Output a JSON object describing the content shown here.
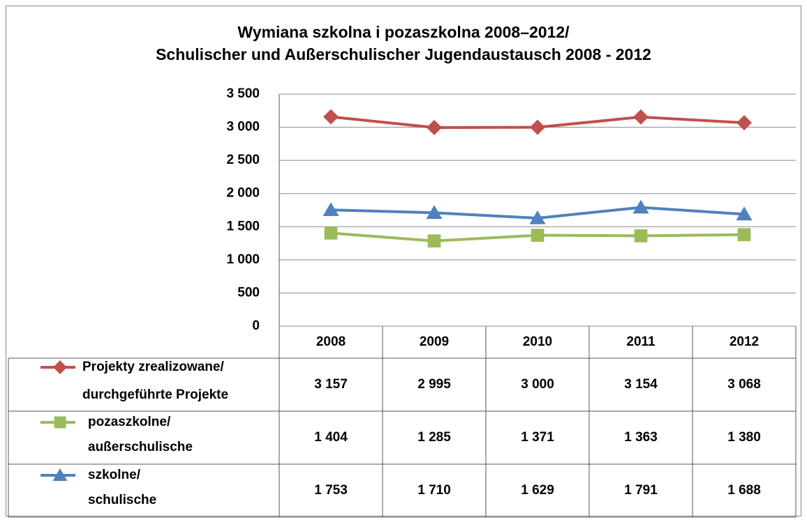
{
  "chart_data": {
    "type": "line",
    "title": "Wymiana szkolna i pozaszkolna 2008–2012/\nSchulischer und Außerschulischer Jugendaustausch 2008 - 2012",
    "categories": [
      "2008",
      "2009",
      "2010",
      "2011",
      "2012"
    ],
    "series": [
      {
        "name": "Projekty zrealizowane/\ndurchgeführte Projekte",
        "color": "#c0504d",
        "marker": "diamond",
        "values": [
          3157,
          2995,
          3000,
          3154,
          3068
        ],
        "value_labels": [
          "3 157",
          "2 995",
          "3 000",
          "3 154",
          "3 068"
        ]
      },
      {
        "name": "pozaszkolne/\naußerschulische",
        "color": "#9bbb59",
        "marker": "square",
        "values": [
          1404,
          1285,
          1371,
          1363,
          1380
        ],
        "value_labels": [
          "1 404",
          "1 285",
          "1 371",
          "1 363",
          "1 380"
        ]
      },
      {
        "name": "szkolne/\nschulische",
        "color": "#4f81bd",
        "marker": "triangle",
        "values": [
          1753,
          1710,
          1629,
          1791,
          1688
        ],
        "value_labels": [
          "1 753",
          "1 710",
          "1 629",
          "1 791",
          "1 688"
        ]
      }
    ],
    "ylim": [
      0,
      3500
    ],
    "yticks": [
      0,
      500,
      {
        "value": 1000,
        "label": "1 000"
      },
      {
        "value": 1500,
        "label": "1 500"
      },
      {
        "value": 2000,
        "label": "2 000"
      },
      {
        "value": 2500,
        "label": "2 500"
      },
      {
        "value": 3000,
        "label": "3 000"
      },
      {
        "value": 3500,
        "label": "3 500"
      }
    ],
    "grid": true
  }
}
